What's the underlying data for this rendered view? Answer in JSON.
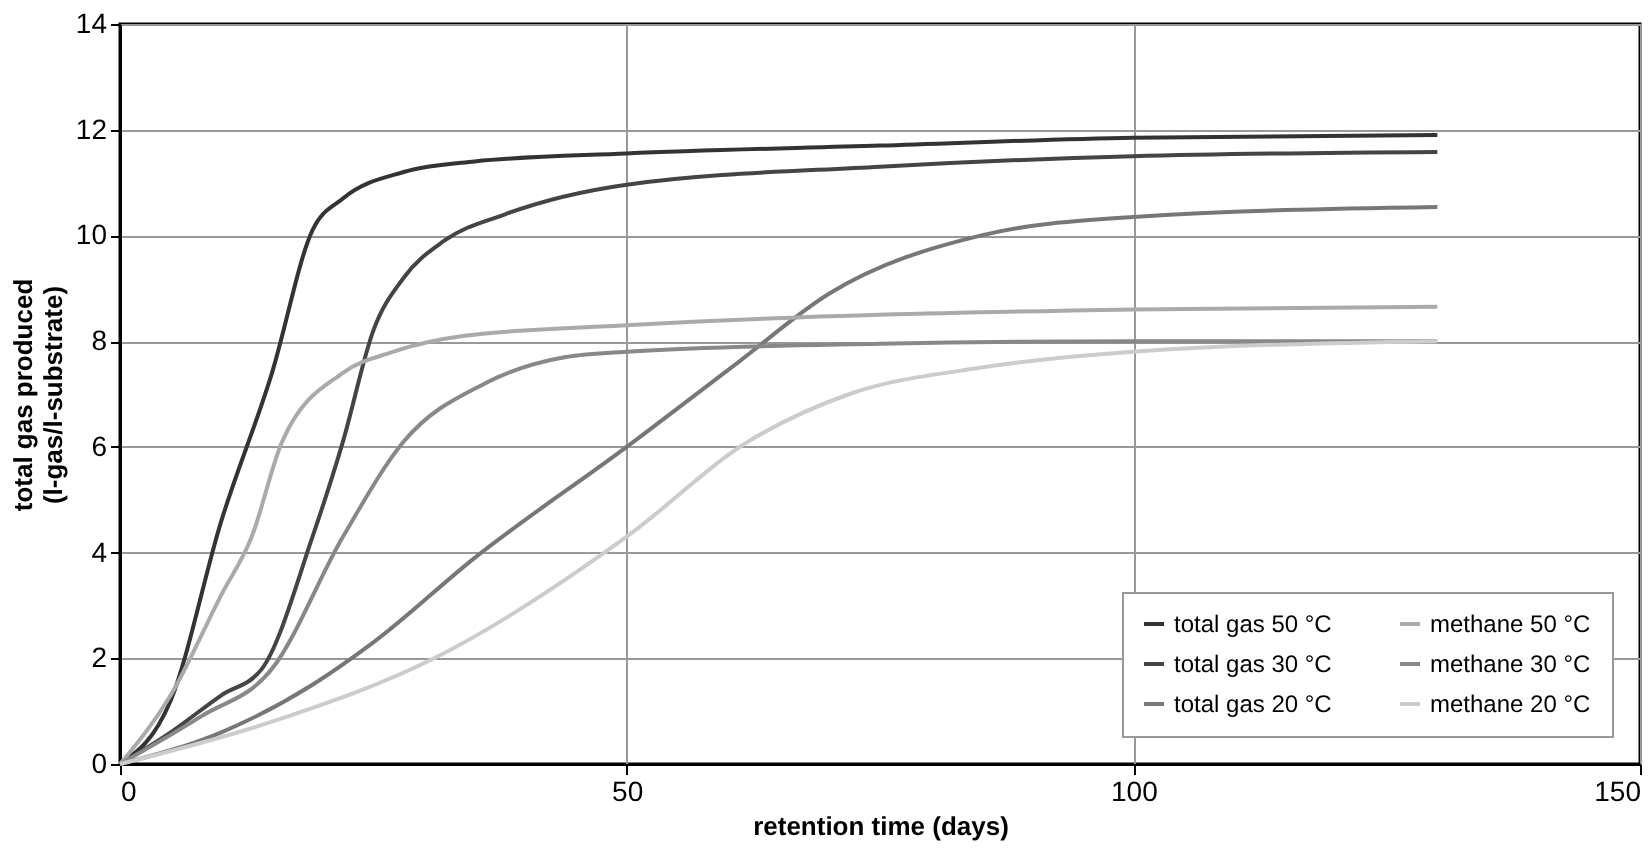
{
  "chart_data": {
    "type": "line",
    "xlabel": "retention time (days)",
    "ylabel": "total gas produced\n(l-gas/l-substrate)",
    "xlim": [
      0,
      150
    ],
    "xticks": [
      0,
      50,
      100,
      150
    ],
    "ylim": [
      0,
      14
    ],
    "yticks": [
      0,
      2,
      4,
      6,
      8,
      10,
      12,
      14
    ],
    "grid": true,
    "legend": "bottom right",
    "line_style": "solid",
    "marker": "none",
    "series": [
      {
        "name": "total gas 50 °C",
        "color": "#333333",
        "x": [
          0,
          5,
          10,
          15,
          19,
          22,
          28,
          35,
          50,
          75,
          100,
          130
        ],
        "values": [
          0,
          1.2,
          4.6,
          7.4,
          10.1,
          10.7,
          11.2,
          11.4,
          11.55,
          11.7,
          11.85,
          11.9
        ]
      },
      {
        "name": "total gas 30 °C",
        "color": "#444444",
        "x": [
          0,
          5,
          10,
          14,
          19,
          22,
          25,
          28,
          32,
          38,
          50,
          75,
          100,
          130
        ],
        "values": [
          0,
          0.6,
          1.3,
          1.8,
          4.3,
          6.1,
          8.2,
          9.2,
          9.9,
          10.4,
          10.96,
          11.3,
          11.5,
          11.58
        ]
      },
      {
        "name": "total gas 20 °C",
        "color": "#777777",
        "x": [
          0,
          10,
          19,
          25,
          35,
          50,
          61,
          70,
          85,
          100,
          130
        ],
        "values": [
          0,
          0.6,
          1.5,
          2.3,
          3.9,
          6.0,
          7.6,
          8.9,
          10.0,
          10.35,
          10.54
        ]
      },
      {
        "name": "methane 50 °C",
        "color": "#aaaaaa",
        "x": [
          0,
          5,
          10,
          13,
          16,
          22,
          27,
          34,
          50,
          100,
          130
        ],
        "values": [
          0,
          1.3,
          3.2,
          4.3,
          6.1,
          7.4,
          7.8,
          8.1,
          8.3,
          8.6,
          8.65
        ]
      },
      {
        "name": "methane 30 °C",
        "color": "#888888",
        "x": [
          0,
          8,
          15,
          22,
          28,
          36,
          44,
          50,
          75,
          100,
          130
        ],
        "values": [
          0,
          0.9,
          1.8,
          4.3,
          6.1,
          7.2,
          7.7,
          7.8,
          7.95,
          8.0,
          8.0
        ]
      },
      {
        "name": "methane 20 °C",
        "color": "#cccccc",
        "x": [
          0,
          15,
          31,
          50,
          62,
          72,
          85,
          100,
          130
        ],
        "values": [
          0,
          0.8,
          2.0,
          4.3,
          6.1,
          7.0,
          7.5,
          7.8,
          8.0
        ]
      }
    ]
  }
}
